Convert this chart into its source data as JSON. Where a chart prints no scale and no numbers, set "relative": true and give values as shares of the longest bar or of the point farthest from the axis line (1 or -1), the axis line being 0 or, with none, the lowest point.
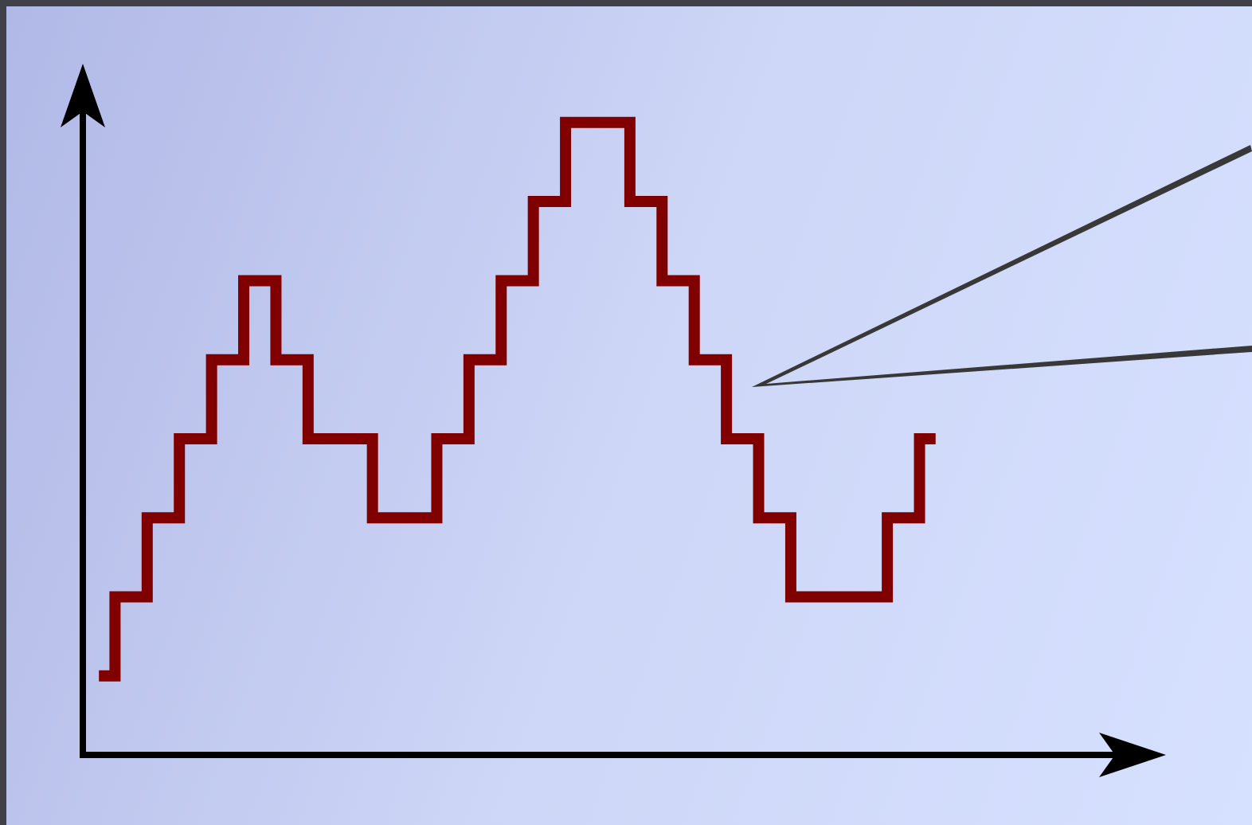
{
  "chart_data": {
    "type": "step",
    "relative": true,
    "marker": "none",
    "legend": false,
    "categories": [
      null,
      null,
      null,
      null,
      null,
      null,
      null,
      null,
      null,
      null,
      null,
      null,
      null,
      null,
      null,
      null,
      null,
      null,
      null,
      null,
      null,
      null,
      null,
      null,
      null,
      null,
      null
    ],
    "series": [
      {
        "color": "#800000",
        "values": [
          0.125,
          0.25,
          0.375,
          0.5,
          0.625,
          0.75,
          0.625,
          0.5,
          0.5,
          0.375,
          0.375,
          0.5,
          0.625,
          0.75,
          0.875,
          1,
          1,
          0.875,
          0.75,
          0.625,
          0.5,
          0.375,
          0.25,
          0.25,
          0.25,
          0.375,
          0.5
        ]
      }
    ]
  }
}
